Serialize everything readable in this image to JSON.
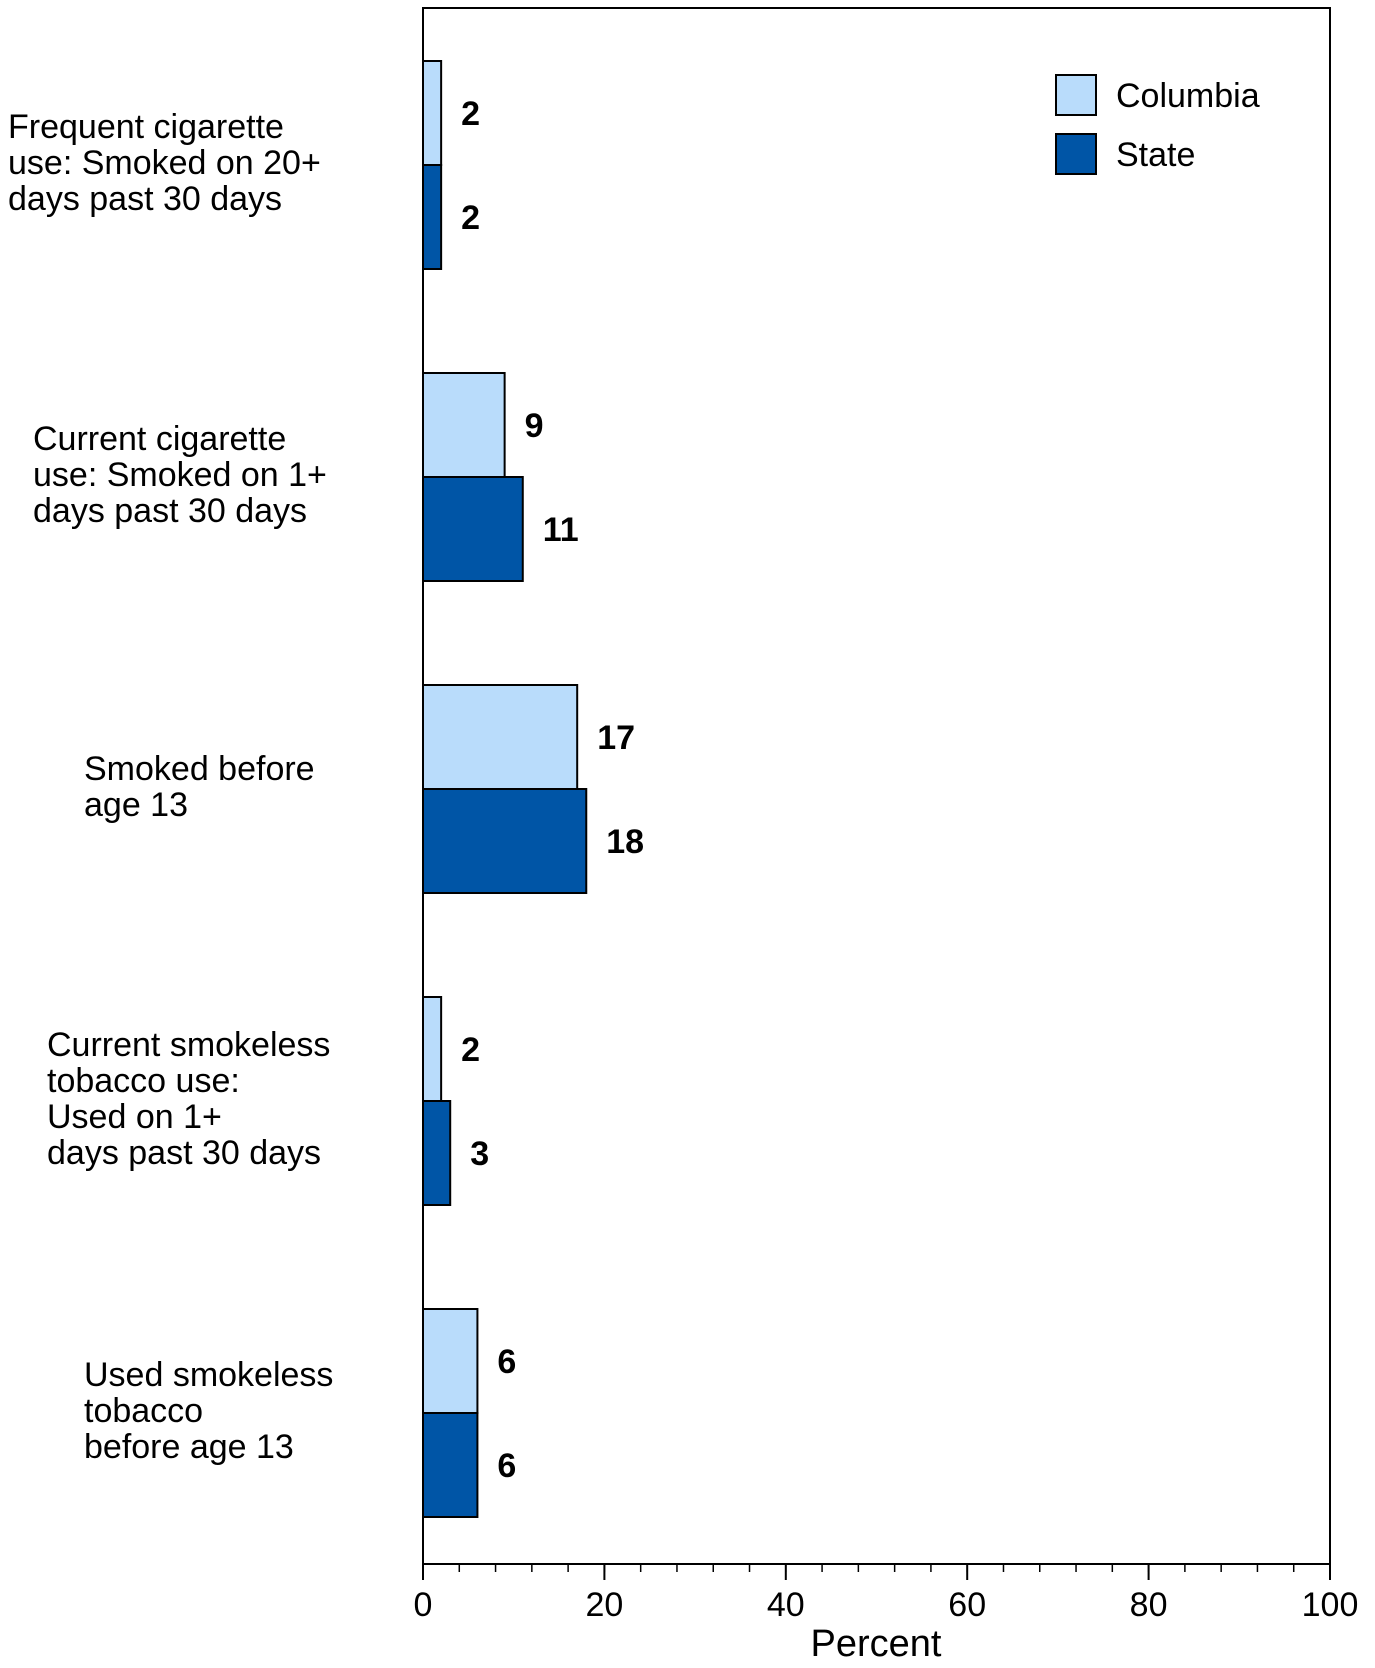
{
  "chart_data": {
    "type": "bar",
    "orientation": "horizontal",
    "categories": [
      [
        "Frequent cigarette",
        "use: Smoked on 20+",
        "days past 30 days"
      ],
      [
        "Current cigarette",
        "use: Smoked on 1+",
        "days past 30 days"
      ],
      [
        "Smoked before",
        "age 13"
      ],
      [
        "Current smokeless",
        "tobacco use:",
        "Used on 1+",
        "days past 30 days"
      ],
      [
        "Used smokeless",
        "tobacco",
        "before age 13"
      ]
    ],
    "series": [
      {
        "name": "Columbia",
        "color": "#b9dcfb",
        "values": [
          2,
          9,
          17,
          2,
          6
        ]
      },
      {
        "name": "State",
        "color": "#0055a6",
        "values": [
          2,
          11,
          18,
          3,
          6
        ]
      }
    ],
    "xlabel": "Percent",
    "xlim": [
      0,
      100
    ],
    "xticks": [
      0,
      20,
      40,
      60,
      80,
      100
    ],
    "minor_tick_step": 4,
    "legend_position": "top-right",
    "grid": false
  }
}
